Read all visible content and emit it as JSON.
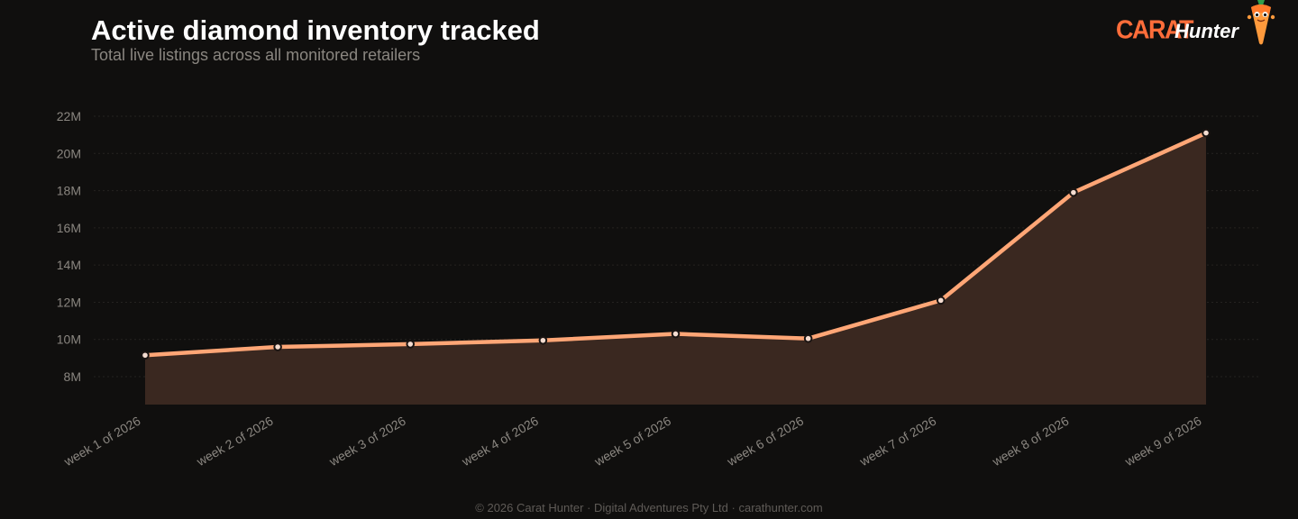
{
  "header": {
    "title": "Active diamond inventory tracked",
    "subtitle": "Total live listings across all monitored retailers"
  },
  "brand": {
    "part1": "CARAT",
    "part2": "Hunter",
    "mascot_icon": "carrot-mascot-icon"
  },
  "footer": {
    "copyright": "© 2026 Carat Hunter",
    "company": "Digital Adventures Pty Ltd",
    "website": "carathunter.com",
    "separator": "·"
  },
  "colors": {
    "background": "#100f0e",
    "line": "#ffa676",
    "area_fill": "#3a2820",
    "grid": "#252320",
    "tick_text": "#8a8680",
    "brand_accent": "#ff6d3a"
  },
  "chart_data": {
    "type": "area",
    "title": "Active diamond inventory tracked",
    "subtitle": "Total live listings across all monitored retailers",
    "xlabel": "",
    "ylabel": "",
    "categories": [
      "week 1 of 2026",
      "week 2 of 2026",
      "week 3 of 2026",
      "week 4 of 2026",
      "week 5 of 2026",
      "week 6 of 2026",
      "week 7 of 2026",
      "week 8 of 2026",
      "week 9 of 2026"
    ],
    "series": [
      {
        "values": [
          9150000,
          9600000,
          9750000,
          9950000,
          10300000,
          10050000,
          12100000,
          17900000,
          21100000
        ]
      }
    ],
    "yticks": [
      8000000,
      10000000,
      12000000,
      14000000,
      16000000,
      18000000,
      20000000,
      22000000
    ],
    "ytick_labels": [
      "8M",
      "10M",
      "12M",
      "14M",
      "16M",
      "18M",
      "20M",
      "22M"
    ],
    "ylim": [
      6500000,
      22000000
    ],
    "grid": true,
    "legend": "none",
    "markers": true
  }
}
